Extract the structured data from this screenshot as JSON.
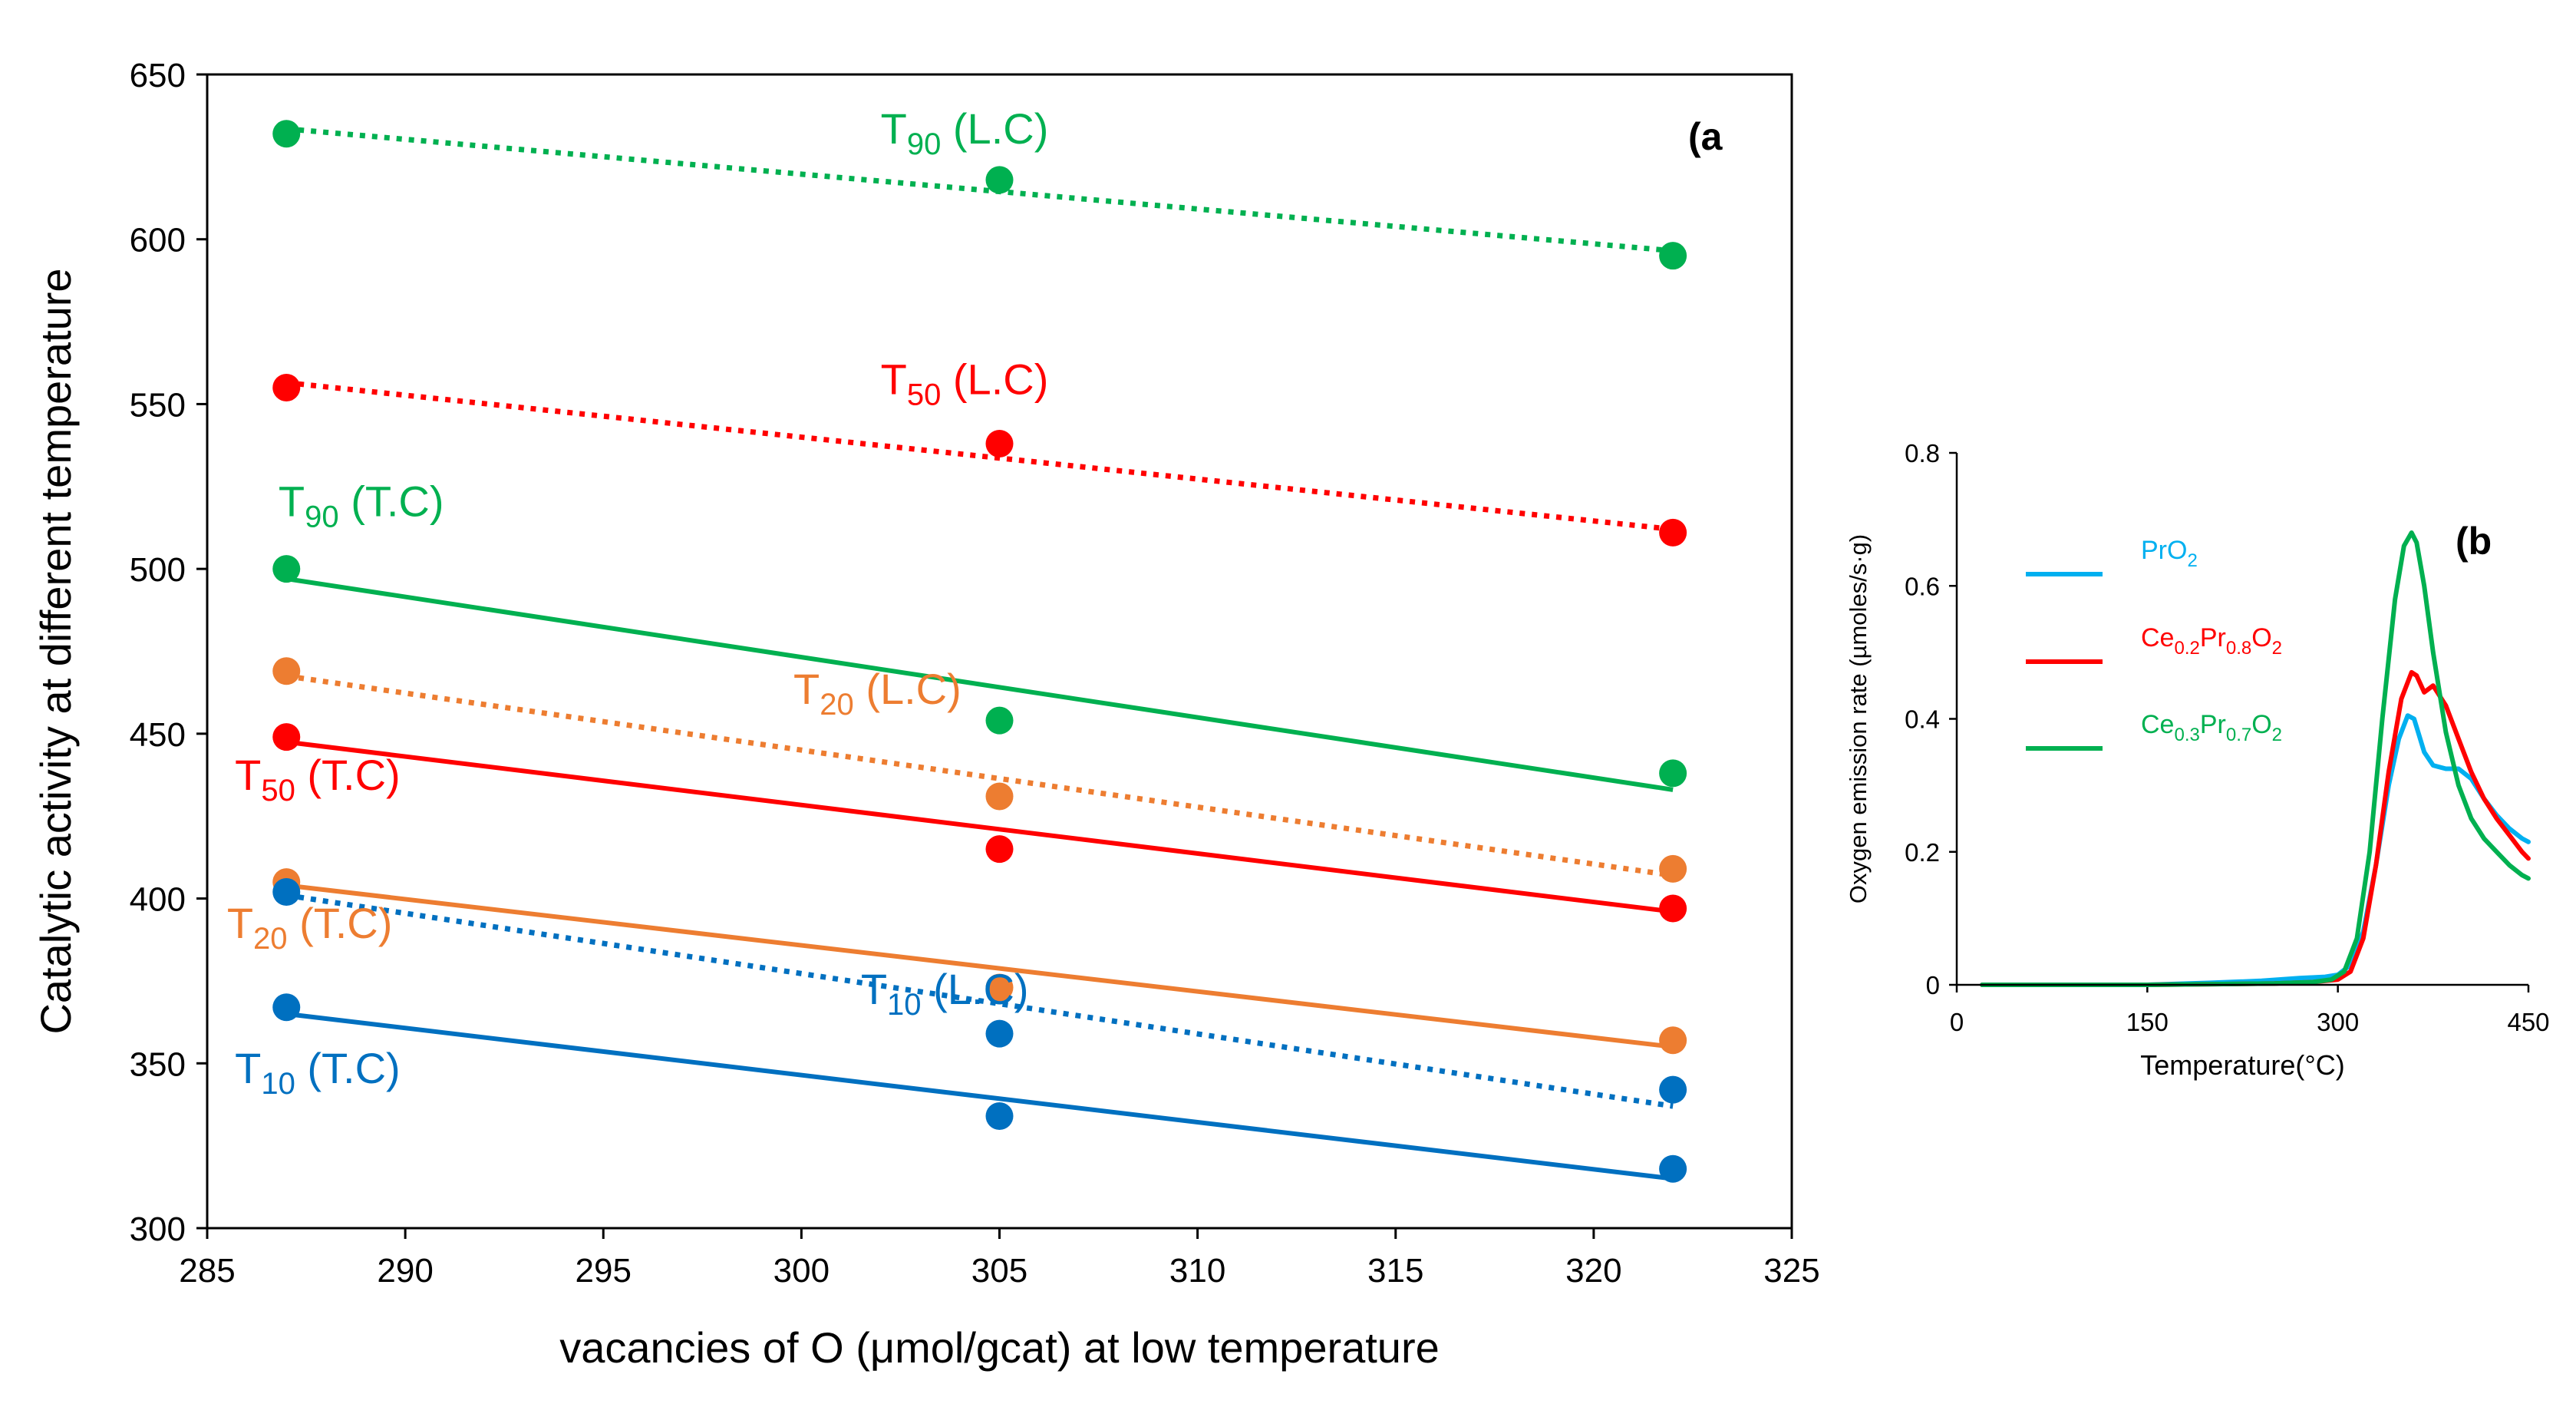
{
  "chart_data": [
    {
      "panel": "a",
      "type": "scatter",
      "panel_label": "(a",
      "xlabel": "vacancies of O (μmol/gcat) at low temperature",
      "ylabel": "Catalytic activity at different temperature",
      "xlim": [
        285,
        325
      ],
      "ylim": [
        300,
        650
      ],
      "xticks": [
        285,
        290,
        295,
        300,
        305,
        310,
        315,
        320,
        325
      ],
      "yticks": [
        300,
        350,
        400,
        450,
        500,
        550,
        600,
        650
      ],
      "x": [
        287,
        305,
        322
      ],
      "series": [
        {
          "id": "T90_LC",
          "label_main": "T",
          "label_sub": "90",
          "label_rest": " (L.C)",
          "color": "#00B050",
          "dash": "dotted",
          "values": [
            632,
            618,
            595
          ],
          "fit": [
            633.5,
            596.5
          ],
          "label_at": [
            302,
            629
          ]
        },
        {
          "id": "T50_LC",
          "label_main": "T",
          "label_sub": "50",
          "label_rest": " (L.C)",
          "color": "#FF0000",
          "dash": "dotted",
          "values": [
            555,
            538,
            511
          ],
          "fit": [
            556.5,
            512
          ],
          "label_at": [
            302,
            553
          ]
        },
        {
          "id": "T90_TC",
          "label_main": "T",
          "label_sub": "90",
          "label_rest": " (T.C)",
          "color": "#00B050",
          "dash": "solid",
          "values": [
            500,
            454,
            438
          ],
          "fit": [
            497,
            433
          ],
          "label_at": [
            286.8,
            516
          ]
        },
        {
          "id": "T20_LC",
          "label_main": "T",
          "label_sub": "20",
          "label_rest": " (L.C)",
          "color": "#ED7D31",
          "dash": "dotted",
          "values": [
            469,
            431,
            409
          ],
          "fit": [
            467.5,
            407
          ],
          "label_at": [
            299.8,
            459
          ]
        },
        {
          "id": "T50_TC",
          "label_main": "T",
          "label_sub": "50",
          "label_rest": " (T.C)",
          "color": "#FF0000",
          "dash": "solid",
          "values": [
            449,
            415,
            397
          ],
          "fit": [
            447.5,
            396
          ],
          "label_at": [
            285.7,
            433
          ]
        },
        {
          "id": "T20_TC",
          "label_main": "T",
          "label_sub": "20",
          "label_rest": " (T.C)",
          "color": "#ED7D31",
          "dash": "solid",
          "values": [
            405,
            373,
            357
          ],
          "fit": [
            404,
            355
          ],
          "label_at": [
            285.5,
            388
          ]
        },
        {
          "id": "T10_LC",
          "label_main": "T",
          "label_sub": "10",
          "label_rest": " (L.C)",
          "color": "#0070C0",
          "dash": "dotted",
          "values": [
            402,
            359,
            342
          ],
          "fit": [
            401,
            337
          ],
          "label_at": [
            301.5,
            368
          ]
        },
        {
          "id": "T10_TC",
          "label_main": "T",
          "label_sub": "10",
          "label_rest": " (T.C)",
          "color": "#0070C0",
          "dash": "solid",
          "values": [
            367,
            334,
            318
          ],
          "fit": [
            365,
            315
          ],
          "label_at": [
            285.7,
            344
          ]
        }
      ]
    },
    {
      "panel": "b",
      "type": "line",
      "panel_label": "(b",
      "xlabel": "Temperature(°C)",
      "ylabel": "Oxygen emission rate (µmoles/s·g)",
      "xlim": [
        0,
        450
      ],
      "ylim": [
        0,
        0.8
      ],
      "xticks": [
        0,
        150,
        300,
        450
      ],
      "yticks": [
        0,
        0.2,
        0.4,
        0.6,
        0.8
      ],
      "ytick_labels": [
        "0",
        "0.2",
        "0.4",
        "0.6",
        "0.8"
      ],
      "series": [
        {
          "name": "PrO2",
          "label_main": "PrO",
          "label_parts": [
            [
              "PrO",
              ""
            ],
            [
              "2",
              "sub"
            ]
          ],
          "color": "#00B0F0",
          "x": [
            20,
            150,
            200,
            240,
            270,
            290,
            300,
            310,
            320,
            330,
            340,
            348,
            355,
            360,
            368,
            375,
            385,
            395,
            405,
            415,
            425,
            435,
            445,
            450
          ],
          "y": [
            0,
            0,
            0.003,
            0.006,
            0.01,
            0.012,
            0.015,
            0.03,
            0.08,
            0.18,
            0.3,
            0.37,
            0.405,
            0.4,
            0.35,
            0.33,
            0.325,
            0.325,
            0.31,
            0.28,
            0.255,
            0.235,
            0.22,
            0.215
          ]
        },
        {
          "name": "Ce0.2Pr0.8O2",
          "label_parts": [
            [
              "Ce",
              ""
            ],
            [
              "0.2",
              "sub"
            ],
            [
              "Pr",
              ""
            ],
            [
              "0.8",
              "sub"
            ],
            [
              "O",
              ""
            ],
            [
              "2",
              "sub"
            ]
          ],
          "color": "#FF0000",
          "x": [
            20,
            150,
            250,
            280,
            300,
            310,
            320,
            330,
            340,
            350,
            358,
            362,
            368,
            375,
            385,
            395,
            405,
            415,
            425,
            435,
            445,
            450
          ],
          "y": [
            0,
            0,
            0.002,
            0.004,
            0.008,
            0.02,
            0.07,
            0.18,
            0.32,
            0.43,
            0.47,
            0.465,
            0.44,
            0.45,
            0.42,
            0.37,
            0.32,
            0.28,
            0.25,
            0.225,
            0.2,
            0.19
          ]
        },
        {
          "name": "Ce0.3Pr0.7O2",
          "label_parts": [
            [
              "Ce",
              ""
            ],
            [
              "0.3",
              "sub"
            ],
            [
              "Pr",
              ""
            ],
            [
              "0.7",
              "sub"
            ],
            [
              "O",
              ""
            ],
            [
              "2",
              "sub"
            ]
          ],
          "color": "#00B050",
          "x": [
            20,
            150,
            250,
            280,
            295,
            305,
            315,
            325,
            335,
            345,
            352,
            358,
            362,
            368,
            375,
            385,
            395,
            405,
            415,
            425,
            435,
            445,
            450
          ],
          "y": [
            0,
            0,
            0.002,
            0.004,
            0.008,
            0.02,
            0.07,
            0.2,
            0.4,
            0.58,
            0.66,
            0.68,
            0.665,
            0.6,
            0.5,
            0.38,
            0.3,
            0.25,
            0.22,
            0.2,
            0.18,
            0.165,
            0.16
          ]
        }
      ]
    }
  ]
}
